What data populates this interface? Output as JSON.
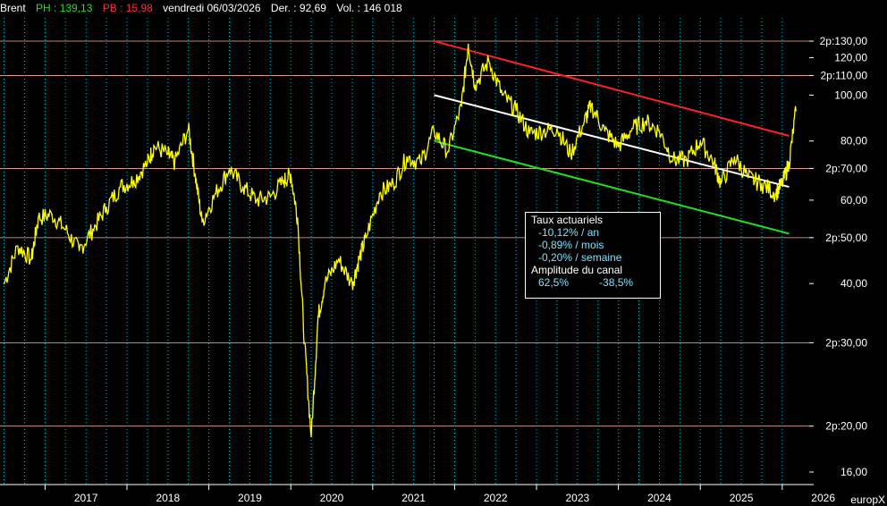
{
  "header": {
    "name": "Brent",
    "ph": "PH : 139,13",
    "pb": "PB : 15,98",
    "date": "vendredi 06/03/2026",
    "last": "Der. : 92,69",
    "volume": "Vol. : 146 018"
  },
  "colors": {
    "price": "#ffff00",
    "grid_v": "#00b8c8",
    "grid_h": "#ffb0a0",
    "channel_top": "#ff2020",
    "channel_mid": "#ffffff",
    "channel_bottom": "#20e020",
    "axis_text": "#ffffff",
    "ph": "#20e020",
    "pb": "#ff3030"
  },
  "legend": {
    "title": "Taux actuariels",
    "rate_year": "-10,12% / an",
    "rate_month": "-0,89% / mois",
    "rate_week": "-0,20% / semaine",
    "amplitude_title": "Amplitude du canal",
    "amp_up": "62,5%",
    "amp_down": "-38,5%"
  },
  "brand": "europX",
  "chart_data": {
    "type": "line",
    "scale": "log",
    "series": [
      {
        "name": "Brent",
        "x": [
          "2016-07",
          "2016-09",
          "2016-11",
          "2016-12",
          "2017-02",
          "2017-04",
          "2017-06",
          "2017-08",
          "2017-10",
          "2017-12",
          "2018-02",
          "2018-04",
          "2018-05",
          "2018-07",
          "2018-08",
          "2018-10",
          "2018-11",
          "2018-12",
          "2019-02",
          "2019-04",
          "2019-06",
          "2019-08",
          "2019-10",
          "2019-12",
          "2020-01",
          "2020-02",
          "2020-03",
          "2020-04",
          "2020-05",
          "2020-06",
          "2020-08",
          "2020-10",
          "2020-11",
          "2020-12",
          "2021-02",
          "2021-04",
          "2021-06",
          "2021-08",
          "2021-10",
          "2021-12",
          "2022-02",
          "2022-03",
          "2022-04",
          "2022-06",
          "2022-08",
          "2022-10",
          "2022-12",
          "2023-02",
          "2023-04",
          "2023-06",
          "2023-08",
          "2023-09",
          "2023-11",
          "2024-01",
          "2024-03",
          "2024-05",
          "2024-07",
          "2024-09",
          "2024-11",
          "2025-01",
          "2025-03",
          "2025-04",
          "2025-06",
          "2025-08",
          "2025-10",
          "2025-12",
          "2026-01",
          "2026-02",
          "2026-03"
        ],
        "y": [
          40,
          48,
          45,
          55,
          56,
          52,
          47,
          52,
          58,
          64,
          66,
          72,
          78,
          75,
          72,
          85,
          68,
          54,
          62,
          70,
          64,
          60,
          61,
          66,
          68,
          55,
          30,
          19,
          34,
          40,
          45,
          40,
          45,
          50,
          62,
          65,
          74,
          72,
          84,
          76,
          95,
          128,
          105,
          118,
          100,
          93,
          83,
          84,
          85,
          75,
          88,
          95,
          84,
          78,
          85,
          88,
          84,
          73,
          73,
          80,
          72,
          65,
          74,
          67,
          65,
          62,
          65,
          72,
          92.69
        ]
      }
    ],
    "channel": {
      "start": "2021-10",
      "end": "2026-02",
      "top": [
        130,
        82
      ],
      "middle": [
        100,
        64
      ],
      "bottom": [
        80,
        51
      ]
    },
    "x_ticks": [
      "2017",
      "2018",
      "2019",
      "2020",
      "2021",
      "2022",
      "2023",
      "2024",
      "2025",
      "2026"
    ],
    "y_ticks": [
      {
        "v": 130,
        "label": "2p:130,00",
        "major": true
      },
      {
        "v": 120,
        "label": "120,00",
        "major": false
      },
      {
        "v": 110,
        "label": "2p:110,00",
        "major": true
      },
      {
        "v": 100,
        "label": "100,00",
        "major": false
      },
      {
        "v": 80,
        "label": "80,00",
        "major": false
      },
      {
        "v": 70,
        "label": "2p:70,00",
        "major": true
      },
      {
        "v": 60,
        "label": "60,00",
        "major": false
      },
      {
        "v": 50,
        "label": "2p:50,00",
        "major": true
      },
      {
        "v": 40,
        "label": "40,00",
        "major": false
      },
      {
        "v": 30,
        "label": "2p:30,00",
        "major": true
      },
      {
        "v": 20,
        "label": "2p:20,00",
        "major": true
      },
      {
        "v": 16,
        "label": "16,00",
        "major": false
      }
    ]
  }
}
